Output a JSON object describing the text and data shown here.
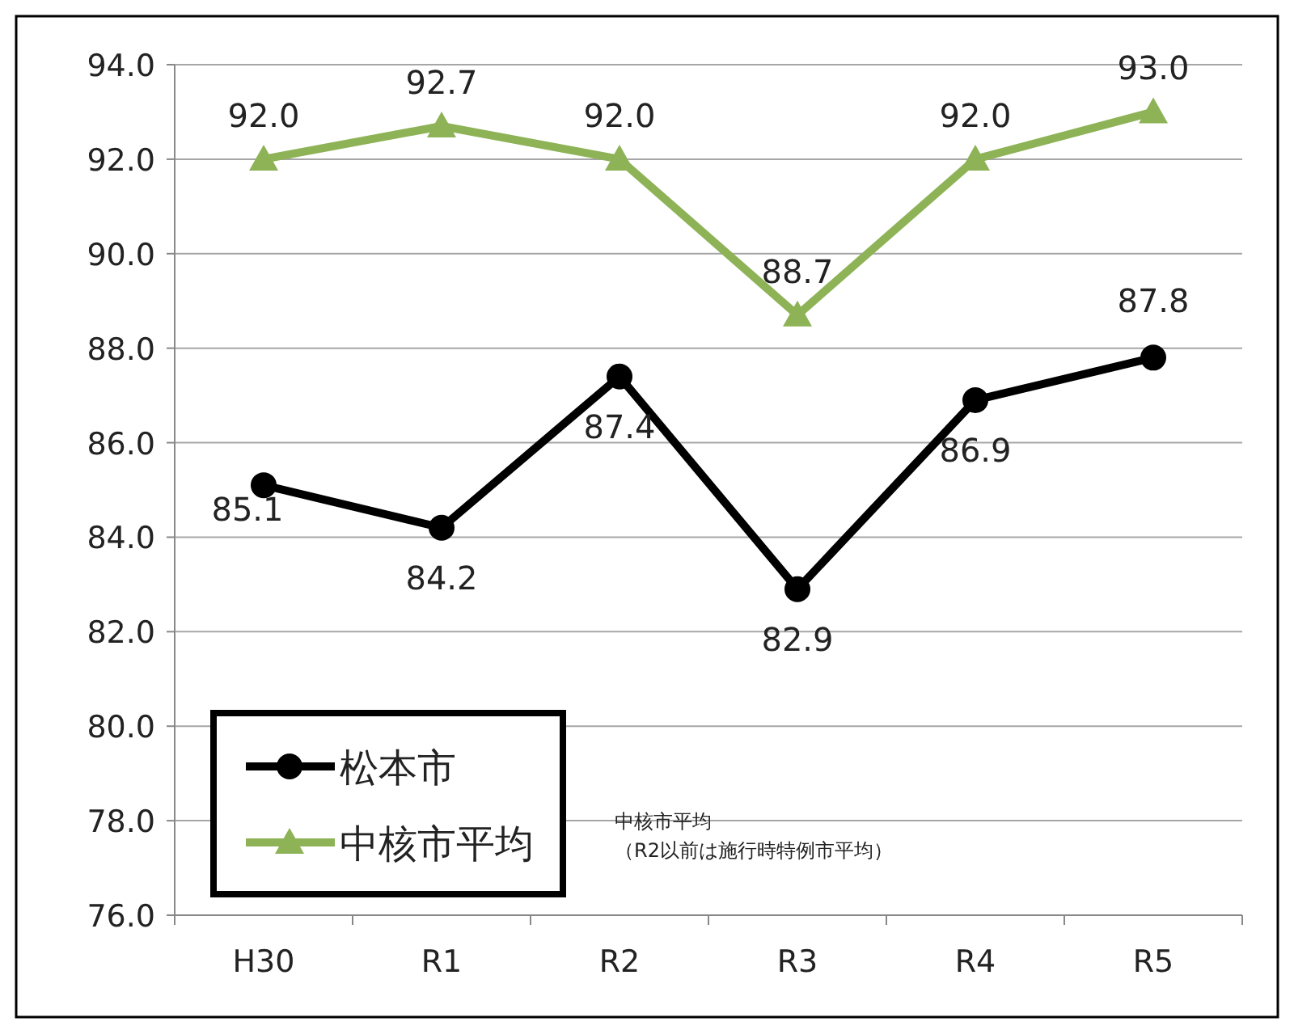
{
  "chart_data": {
    "type": "line",
    "categories": [
      "H30",
      "R1",
      "R2",
      "R3",
      "R4",
      "R5"
    ],
    "series": [
      {
        "name": "松本市",
        "color": "#000000",
        "marker": "circle",
        "values": [
          85.1,
          84.2,
          87.4,
          82.9,
          86.9,
          87.8
        ],
        "value_labels": [
          "85.1",
          "84.2",
          "87.4",
          "82.9",
          "86.9",
          "87.8"
        ]
      },
      {
        "name": "中核市平均",
        "color": "#8db356",
        "marker": "triangle",
        "values": [
          92.0,
          92.7,
          92.0,
          88.7,
          92.0,
          93.0
        ],
        "value_labels": [
          "92.0",
          "92.7",
          "92.0",
          "88.7",
          "92.0",
          "93.0"
        ]
      }
    ],
    "ylim": [
      76,
      94
    ],
    "yticks": [
      {
        "value": 76,
        "label": "76.0"
      },
      {
        "value": 78,
        "label": "78.0"
      },
      {
        "value": 80,
        "label": "80.0"
      },
      {
        "value": 82,
        "label": "82.0"
      },
      {
        "value": 84,
        "label": "84.0"
      },
      {
        "value": 86,
        "label": "86.0"
      },
      {
        "value": 88,
        "label": "88.0"
      },
      {
        "value": 90,
        "label": "90.0"
      },
      {
        "value": 92,
        "label": "92.0"
      },
      {
        "value": 94,
        "label": "94.0"
      }
    ],
    "grid": "y",
    "legend": "bottom left",
    "annotations": [
      "中核市平均",
      "（R2以前は施行時特例市平均）"
    ]
  }
}
